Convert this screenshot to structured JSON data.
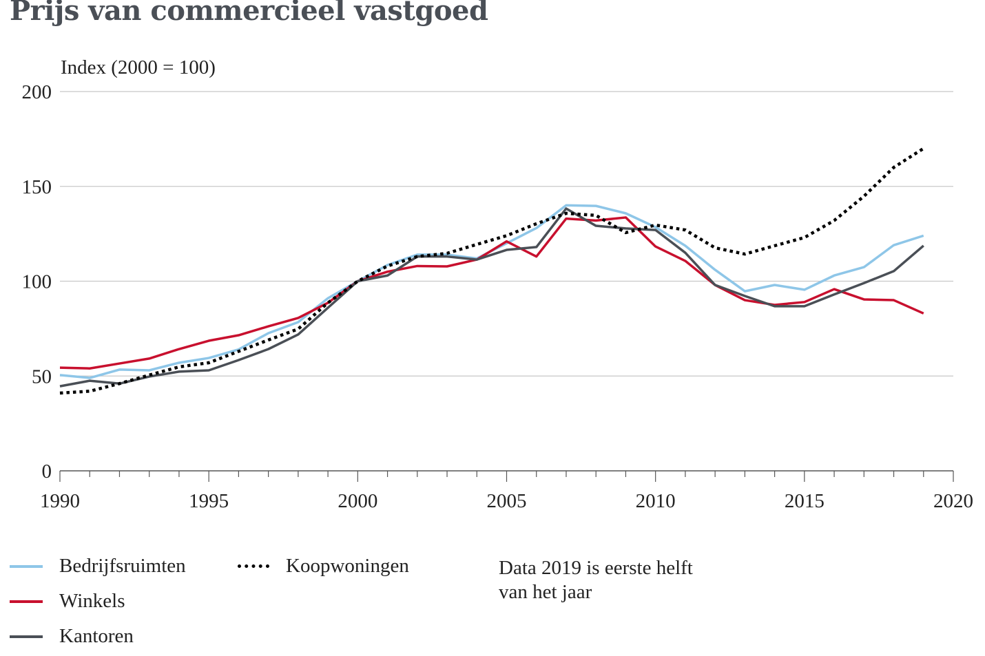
{
  "title": "Prijs van commercieel vastgoed",
  "chart_data": {
    "type": "line",
    "title": "Prijs van commercieel vastgoed",
    "ylabel": "Index (2000 = 100)",
    "xlabel": "",
    "xlim": [
      1990,
      2020
    ],
    "ylim": [
      0,
      200
    ],
    "xticks": [
      1990,
      1995,
      2000,
      2005,
      2010,
      2015,
      2020
    ],
    "yticks": [
      0,
      50,
      100,
      150,
      200
    ],
    "grid": "horizontal",
    "legend": "bottom",
    "x": [
      1990,
      1991,
      1992,
      1993,
      1994,
      1995,
      1996,
      1997,
      1998,
      1999,
      2000,
      2001,
      2002,
      2003,
      2004,
      2005,
      2006,
      2007,
      2008,
      2009,
      2010,
      2011,
      2012,
      2013,
      2014,
      2015,
      2016,
      2017,
      2018,
      2019
    ],
    "series": [
      {
        "name": "Bedrijfsruimten",
        "color": "#8ec6e8",
        "style": "solid",
        "values": [
          50.5,
          49,
          53.4,
          53,
          57,
          59.5,
          64,
          72.6,
          78.4,
          91,
          100,
          108.5,
          114,
          114,
          112,
          120,
          128,
          140,
          139.7,
          135.8,
          128.5,
          118.7,
          106,
          94.7,
          98,
          95.5,
          103,
          107.4,
          119,
          124
        ]
      },
      {
        "name": "Winkels",
        "color": "#c8102e",
        "style": "solid",
        "values": [
          54.4,
          54,
          56.6,
          59.2,
          64.2,
          68.6,
          71.5,
          76.2,
          80.6,
          88.6,
          100,
          105,
          108,
          107.8,
          111.4,
          121,
          113,
          133,
          132,
          133.6,
          118.3,
          110.7,
          98,
          90,
          87.5,
          89,
          95.8,
          90.4,
          90,
          83
        ]
      },
      {
        "name": "Kantoren",
        "color": "#4a4f56",
        "style": "solid",
        "values": [
          44.6,
          47.5,
          46,
          49.7,
          52.3,
          53,
          58.4,
          64.2,
          71.9,
          86,
          100,
          103,
          113,
          113,
          111.4,
          116.5,
          118,
          138.3,
          129.2,
          127.8,
          127,
          115,
          98,
          92.2,
          86.8,
          86.8,
          93,
          99,
          105.3,
          118.7
        ]
      },
      {
        "name": "Koopwoningen",
        "color": "#000000",
        "style": "dotted",
        "values": [
          41,
          42,
          46,
          50.5,
          54.8,
          57,
          63,
          69,
          74.8,
          88.6,
          100,
          108,
          113,
          114.7,
          119.4,
          124,
          130.3,
          135.8,
          134.7,
          125.6,
          129.6,
          127,
          117.6,
          114.3,
          118.7,
          123,
          132,
          144.8,
          160,
          170
        ]
      }
    ],
    "annotation": "Data 2019 is eerste helft van het jaar"
  }
}
